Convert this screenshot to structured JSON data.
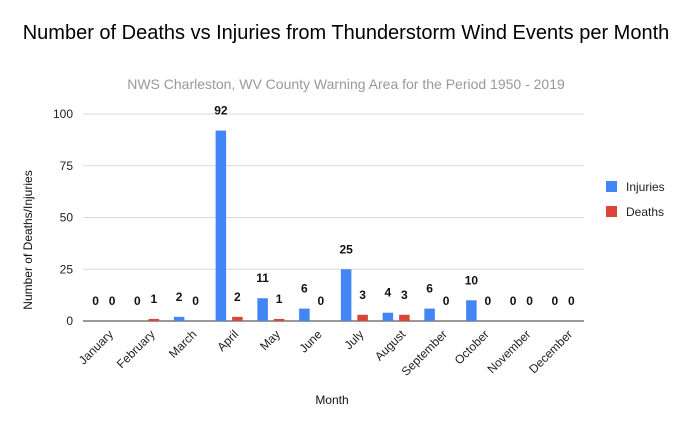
{
  "chart_data": {
    "type": "bar",
    "title": "Number of Deaths vs Injuries from Thunderstorm Wind Events per Month",
    "subtitle": "NWS Charleston, WV County Warning Area for the Period 1950 - 2019",
    "xlabel": "Month",
    "ylabel": "Number of Deaths/Injuries",
    "ylim": [
      0,
      100
    ],
    "yticks": [
      0,
      25,
      50,
      75,
      100
    ],
    "grid": true,
    "legend_position": "right",
    "categories": [
      "January",
      "February",
      "March",
      "April",
      "May",
      "June",
      "July",
      "August",
      "September",
      "October",
      "November",
      "December"
    ],
    "series": [
      {
        "name": "Injuries",
        "color": "#4285f4",
        "values": [
          0,
          0,
          2,
          92,
          11,
          6,
          25,
          4,
          6,
          10,
          0,
          0
        ]
      },
      {
        "name": "Deaths",
        "color": "#db4437",
        "values": [
          0,
          1,
          0,
          2,
          1,
          0,
          3,
          3,
          0,
          0,
          0,
          0
        ]
      }
    ]
  }
}
